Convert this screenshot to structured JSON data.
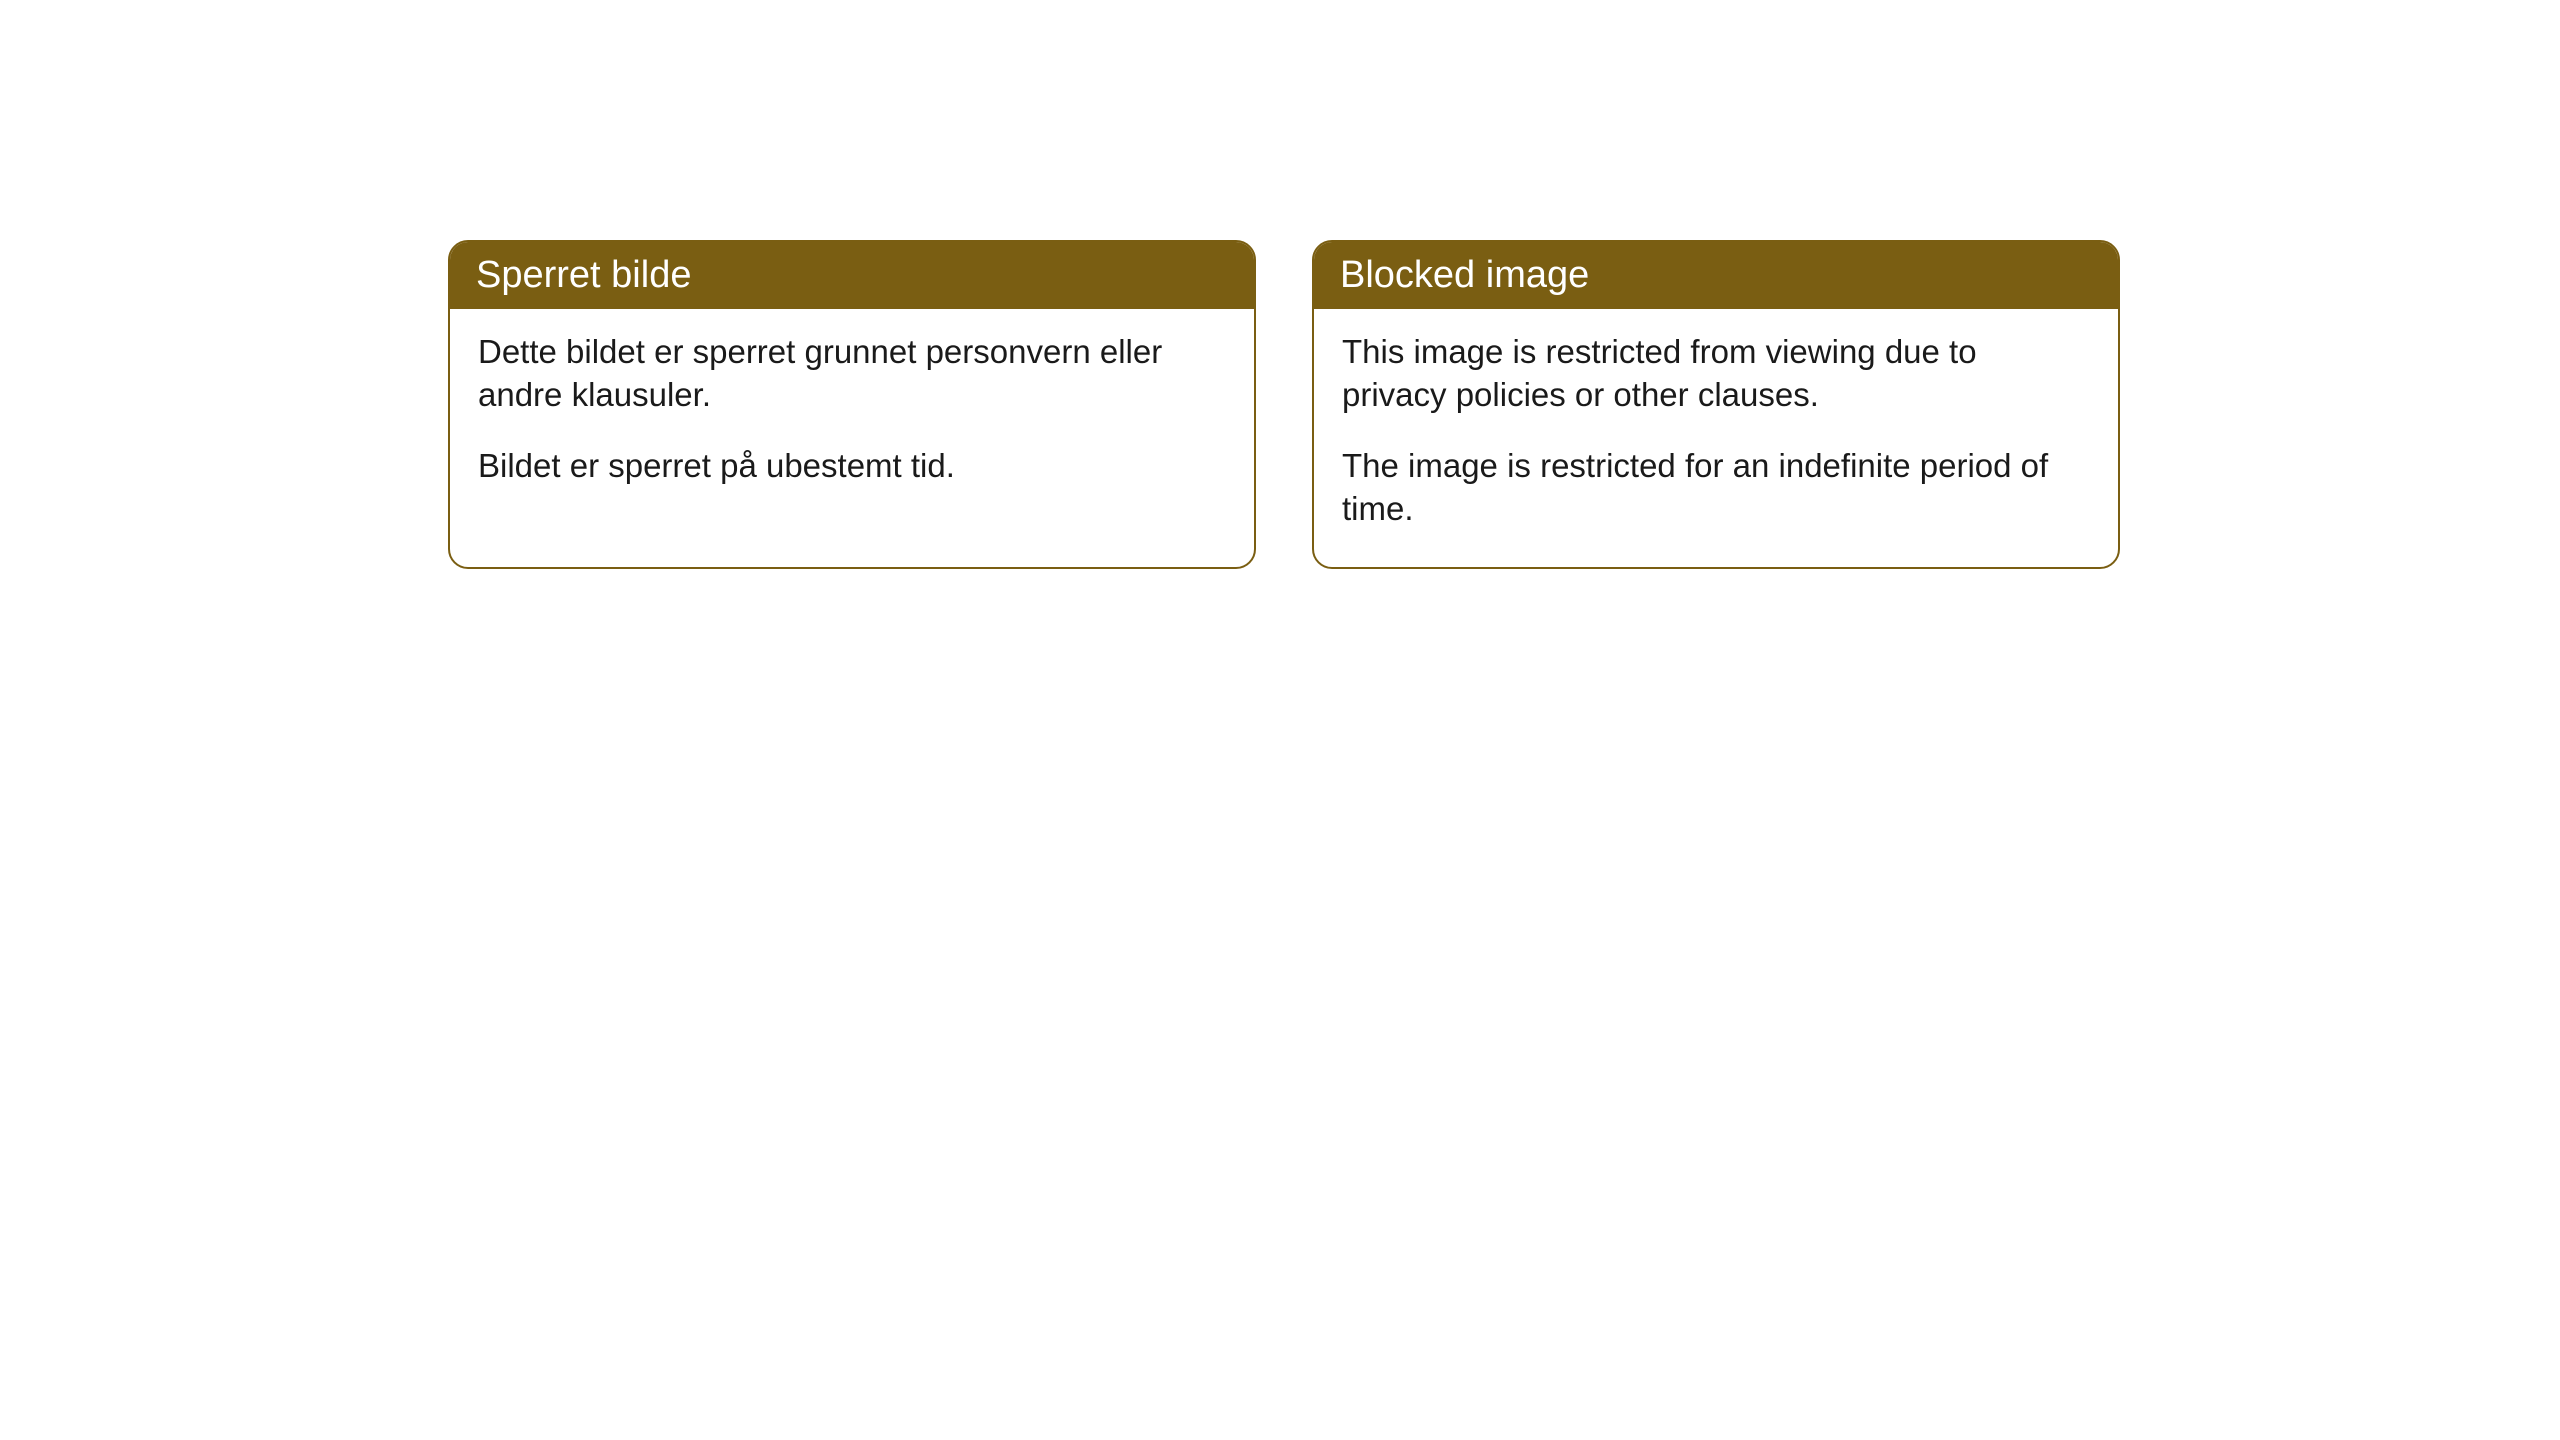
{
  "cards": [
    {
      "title": "Sperret bilde",
      "paragraph1": "Dette bildet er sperret grunnet personvern eller andre klausuler.",
      "paragraph2": "Bildet er sperret på ubestemt tid."
    },
    {
      "title": "Blocked image",
      "paragraph1": "This image is restricted from viewing due to privacy policies or other clauses.",
      "paragraph2": "The image is restricted for an indefinite period of time."
    }
  ],
  "style": {
    "header_background": "#7a5e12",
    "header_text_color": "#ffffff",
    "border_color": "#7a5e12",
    "body_background": "#ffffff",
    "body_text_color": "#1a1a1a",
    "border_radius": 20,
    "title_fontsize": 38,
    "body_fontsize": 33
  }
}
